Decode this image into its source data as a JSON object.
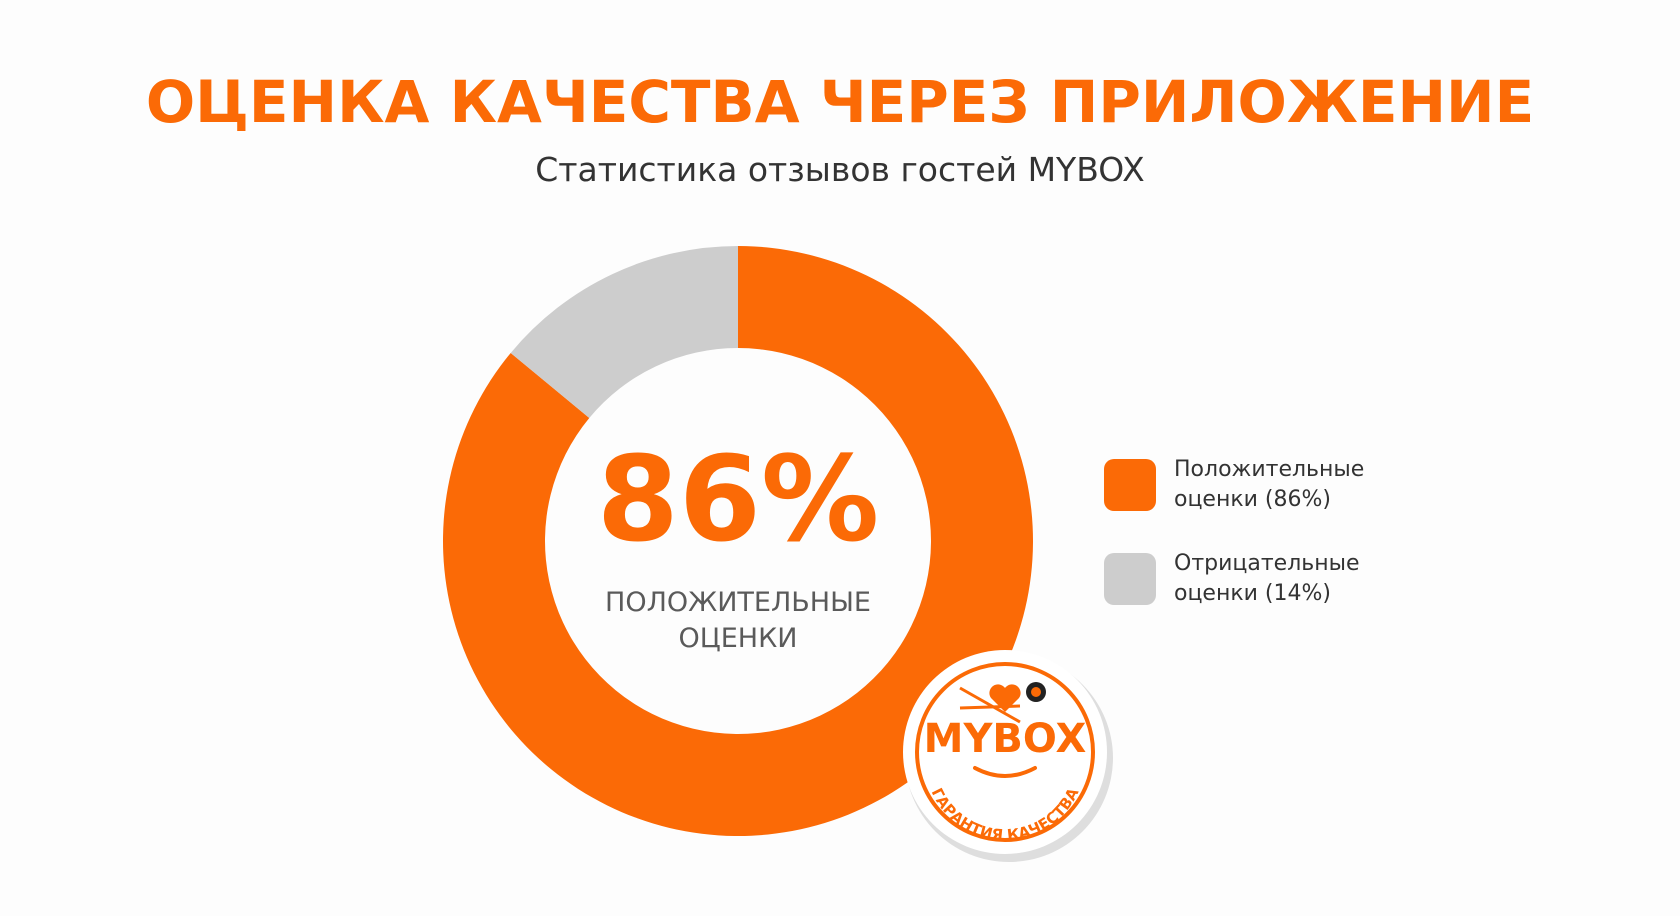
{
  "chart_data": {
    "type": "pie",
    "donut": true,
    "title": "ОЦЕНКА КАЧЕСТВА ЧЕРЕЗ ПРИЛОЖЕНИЕ",
    "subtitle": "Статистика отзывов гостей MYBOX",
    "categories": [
      "Положительные оценки (86%)",
      "Отрицательные оценки (14%)"
    ],
    "values": [
      86,
      14
    ],
    "value_labels": [
      "86%",
      null
    ],
    "colors": [
      "#fb6a06",
      "#cdcdcd"
    ],
    "center_text": "ПОЛОЖИТЕЛЬНЫЕ ОЦЕНКИ",
    "legend": "right",
    "badge": {
      "brand": "MYBOX",
      "caption": "ГАРАНТИЯ КАЧЕСТВА"
    }
  }
}
